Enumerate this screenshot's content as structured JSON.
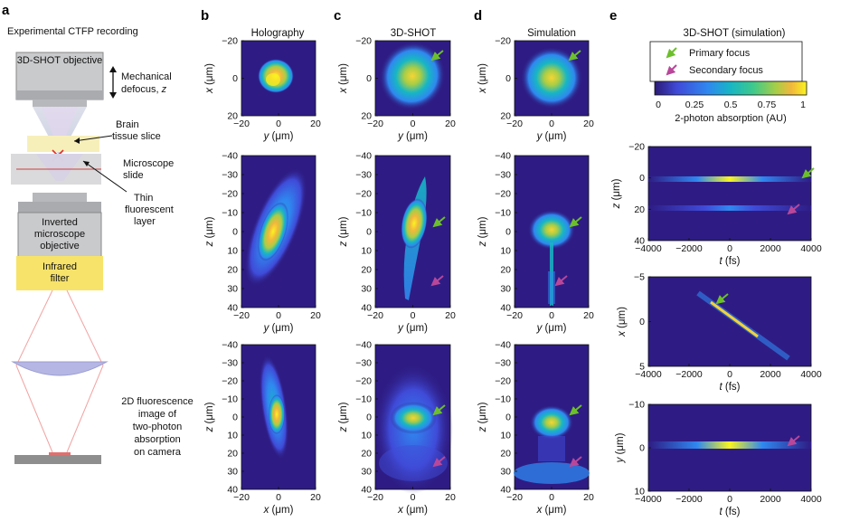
{
  "panel_letters": [
    "a",
    "b",
    "c",
    "d",
    "e"
  ],
  "panel_a": {
    "title": "Experimental CTFP recording",
    "objective_top": "3D-SHOT objective",
    "mech_defocus_line1": "Mechanical",
    "mech_defocus_line2": "defocus,",
    "mech_defocus_var": "z",
    "brain_slice": "Brain tissue slice",
    "microscope_slide": "Microscope slide",
    "fluorescent_layer": "Thin fluorescent layer",
    "inverted_objective": "Inverted microscope objective",
    "infrared_filter": "Infrared filter",
    "camera_caption": "2D fluorescence image of two-photon absorption on camera"
  },
  "column_titles": {
    "b": "Holography",
    "c": "3D-SHOT",
    "d": "Simulation",
    "e": "3D-SHOT (simulation)"
  },
  "legend": {
    "primary": "Primary focus",
    "secondary": "Secondary focus",
    "colorbar_ticks": [
      "0",
      "0.25",
      "0.5",
      "0.75",
      "1"
    ],
    "colorbar_label": "2-photon absorption (AU)",
    "primary_color": "#6cbf2b",
    "secondary_color": "#b8479a"
  },
  "axes": {
    "xy_row": {
      "xlabel_var": "y",
      "ylabel_var": "x",
      "unit": "(μm)",
      "xticks": [
        "−20",
        "0",
        "20"
      ],
      "yticks": [
        "−20",
        "0",
        "20"
      ]
    },
    "yz_row": {
      "xlabel_var": "y",
      "ylabel_var": "z",
      "unit": "(μm)",
      "xticks": [
        "−20",
        "0",
        "20"
      ],
      "yticks": [
        "−40",
        "−30",
        "−20",
        "−10",
        "0",
        "10",
        "20",
        "30",
        "40"
      ]
    },
    "xz_row": {
      "xlabel_var": "x",
      "ylabel_var": "z",
      "unit": "(μm)",
      "xticks": [
        "−20",
        "0",
        "20"
      ],
      "yticks": [
        "−40",
        "−30",
        "−20",
        "−10",
        "0",
        "10",
        "20",
        "30",
        "40"
      ]
    },
    "e_time": {
      "xlabel_var": "t",
      "xunit": "(fs)",
      "xticks": [
        "−4000",
        "−2000",
        "0",
        "2000",
        "4000"
      ]
    },
    "e_tz": {
      "ylabel_var": "z",
      "unit": "(μm)",
      "yticks": [
        "−20",
        "0",
        "20",
        "40"
      ]
    },
    "e_tx": {
      "ylabel_var": "x",
      "unit": "(μm)",
      "yticks": [
        "−5",
        "0",
        "5"
      ]
    },
    "e_ty": {
      "ylabel_var": "y",
      "unit": "(μm)",
      "yticks": [
        "−10",
        "0",
        "10"
      ]
    }
  },
  "colormap": [
    "#2b1a77",
    "#3f4bd8",
    "#2f88f0",
    "#17b6c4",
    "#3fc98b",
    "#a8cd46",
    "#f2b73c",
    "#f9f420"
  ],
  "background_color": "#2e1c84"
}
